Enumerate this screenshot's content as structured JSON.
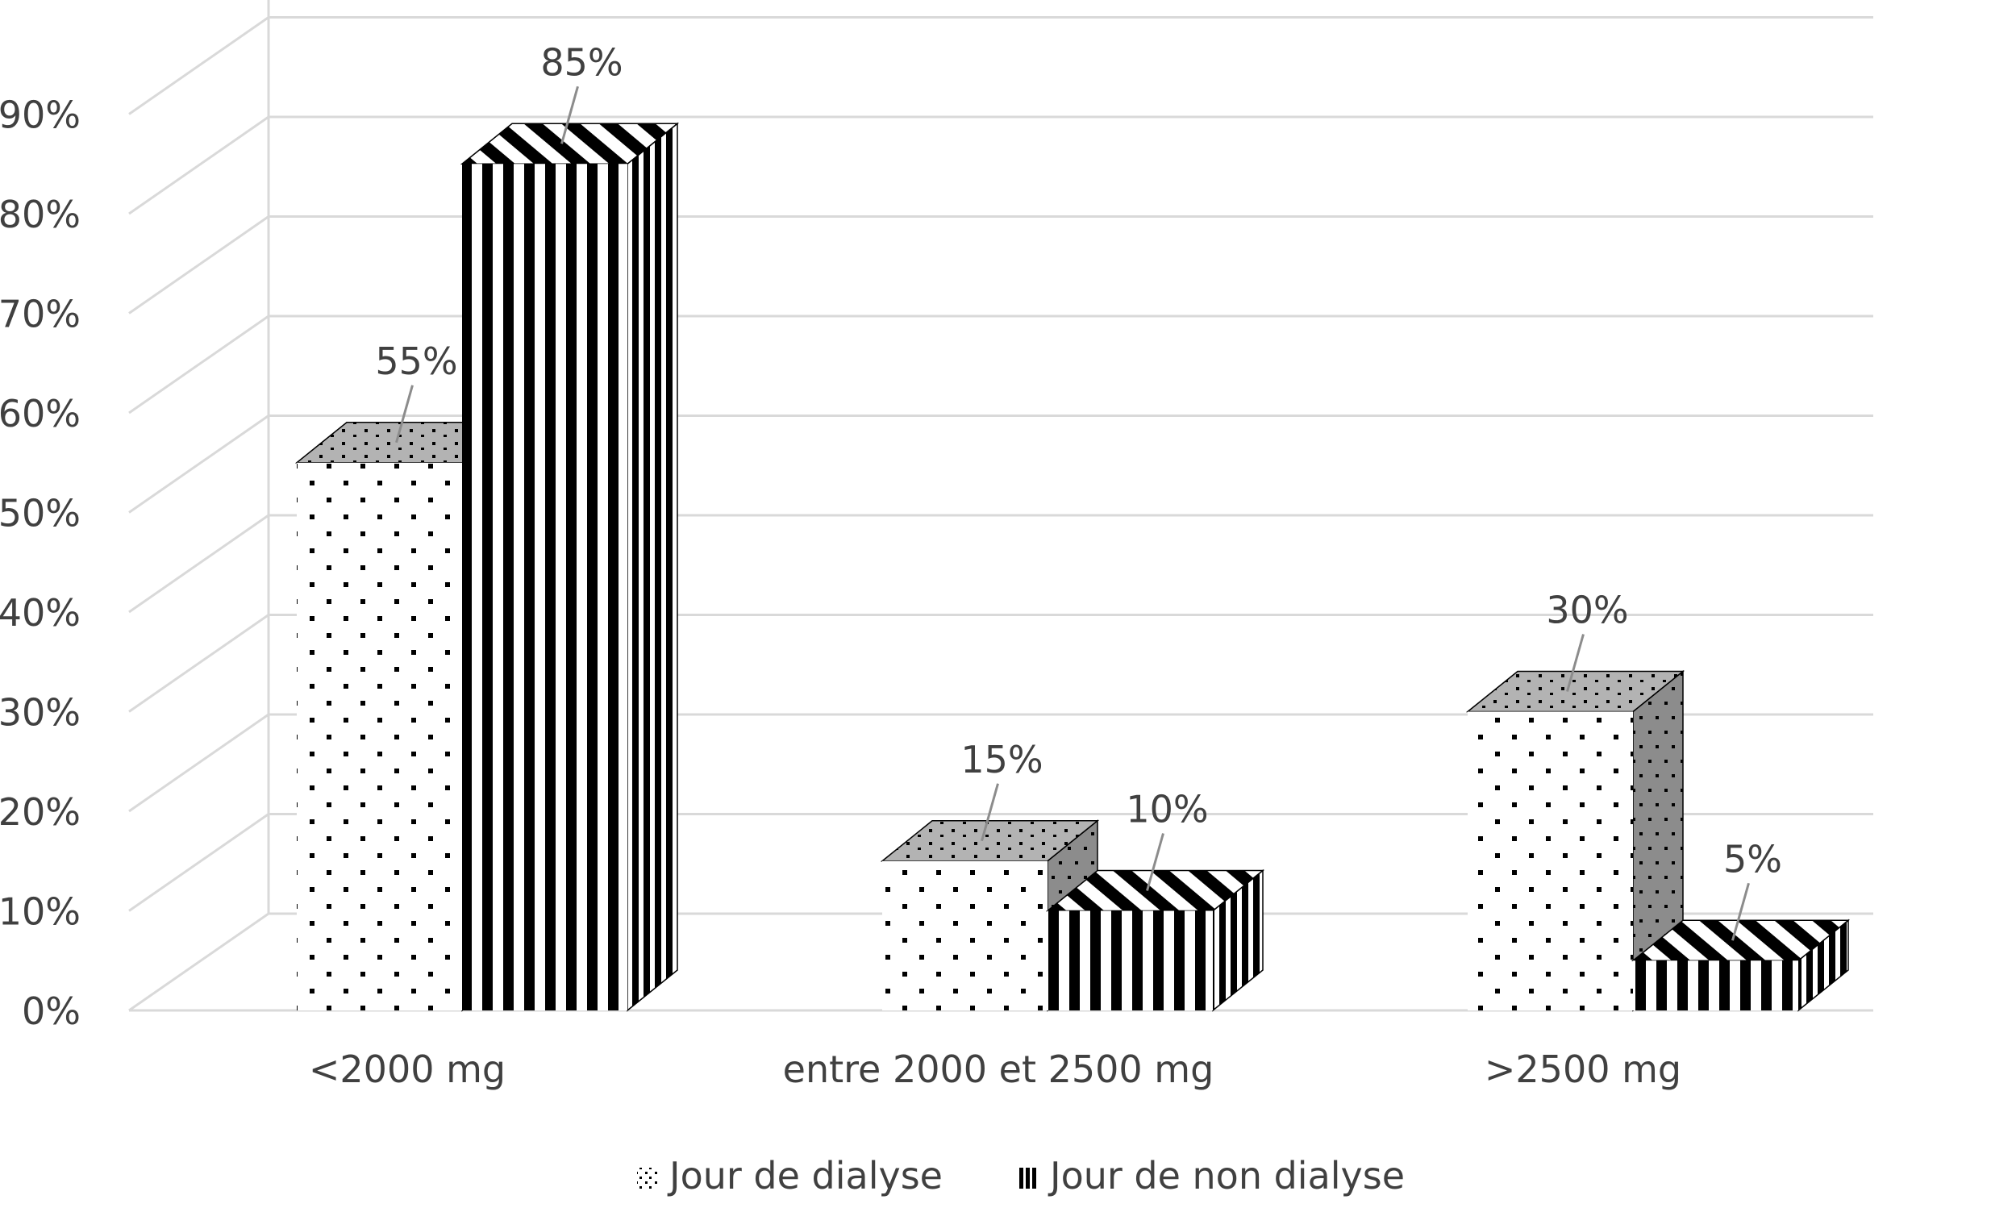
{
  "chart_data": {
    "type": "bar",
    "categories": [
      "<2000 mg",
      "entre 2000 et 2500 mg",
      ">2500 mg"
    ],
    "series": [
      {
        "name": "Jour de dialyse",
        "values": [
          55,
          15,
          30
        ],
        "labels": [
          "55%",
          "15%",
          "30%"
        ],
        "pattern": "dots"
      },
      {
        "name": "Jour de non dialyse",
        "values": [
          85,
          10,
          5
        ],
        "labels": [
          "85%",
          "10%",
          "5%"
        ],
        "pattern": "stripes"
      }
    ],
    "y_ticks": [
      "0%",
      "10%",
      "20%",
      "30%",
      "40%",
      "50%",
      "60%",
      "70%",
      "80%",
      "90%"
    ],
    "ylim": [
      0,
      100
    ],
    "grid": true,
    "legend_position": "bottom",
    "three_d": true,
    "colors": {
      "grid": "#d9d9d9",
      "text": "#404040",
      "bar_face": "#ffffff",
      "bar_top_dots": "#b3b3b3",
      "bar_side_dots": "#8c8c8c",
      "stripe": "#000000"
    }
  }
}
